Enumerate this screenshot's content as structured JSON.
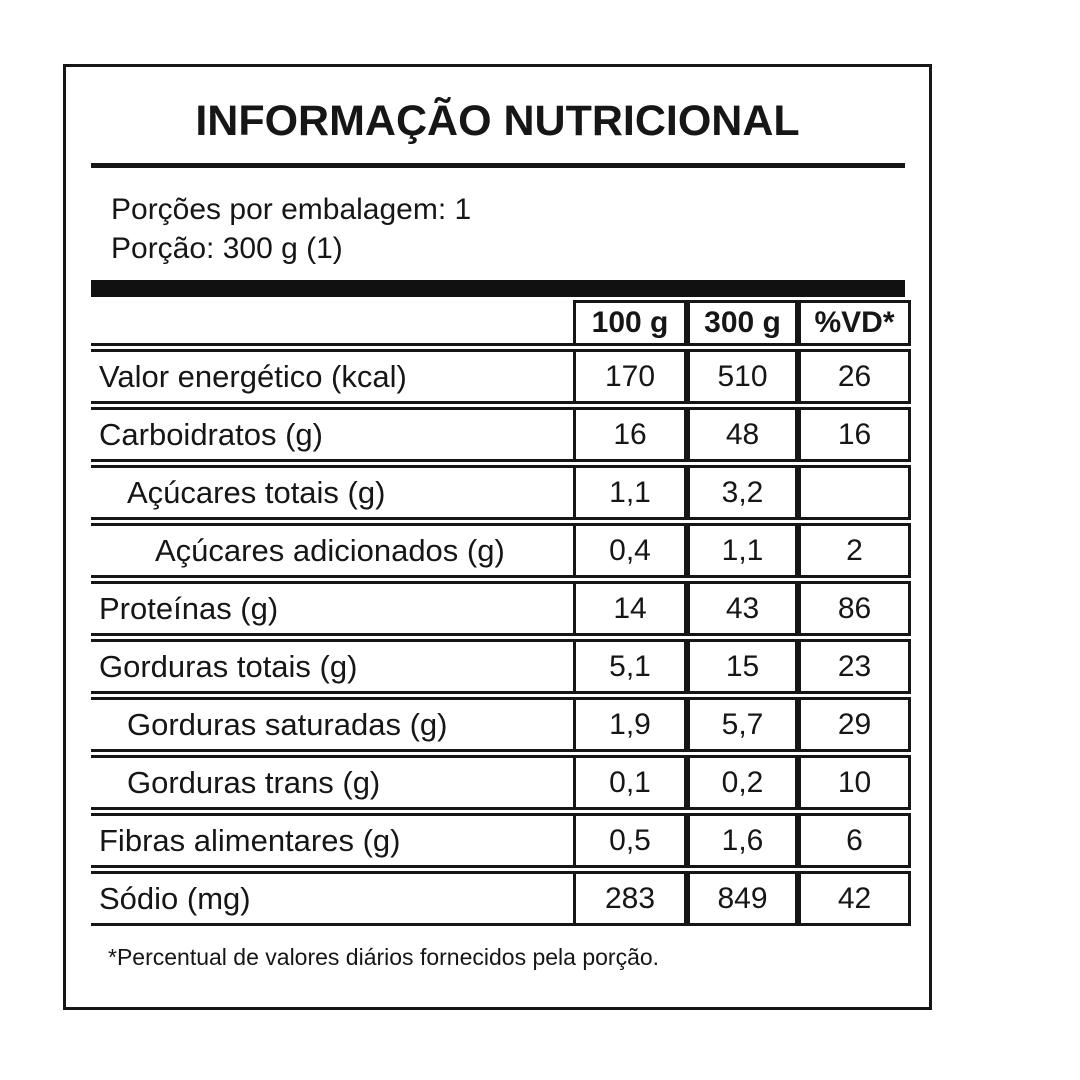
{
  "label": {
    "title": "INFORMAÇÃO NUTRICIONAL",
    "servings_per_package": "Porções por embalagem: 1",
    "serving_size": "Porção: 300 g (1)",
    "columns": [
      "100 g",
      "300 g",
      "%VD*"
    ],
    "rows": [
      {
        "name": "Valor energético (kcal)",
        "per_100g": "170",
        "per_300g": "510",
        "pct_vd": "26"
      },
      {
        "name": "Carboidratos (g)",
        "per_100g": "16",
        "per_300g": "48",
        "pct_vd": "16"
      },
      {
        "name": "Açúcares totais (g)",
        "per_100g": "1,1",
        "per_300g": "3,2",
        "pct_vd": ""
      },
      {
        "name": "Açúcares adicionados (g)",
        "per_100g": "0,4",
        "per_300g": "1,1",
        "pct_vd": "2"
      },
      {
        "name": "Proteínas (g)",
        "per_100g": "14",
        "per_300g": "43",
        "pct_vd": "86"
      },
      {
        "name": "Gorduras totais (g)",
        "per_100g": "5,1",
        "per_300g": "15",
        "pct_vd": "23"
      },
      {
        "name": "Gorduras saturadas (g)",
        "per_100g": "1,9",
        "per_300g": "5,7",
        "pct_vd": "29"
      },
      {
        "name": "Gorduras trans (g)",
        "per_100g": "0,1",
        "per_300g": "0,2",
        "pct_vd": "10"
      },
      {
        "name": "Fibras alimentares (g)",
        "per_100g": "0,5",
        "per_300g": "1,6",
        "pct_vd": "6"
      },
      {
        "name": "Sódio (mg)",
        "per_100g": "283",
        "per_300g": "849",
        "pct_vd": "42"
      }
    ],
    "footnote": "*Percentual de valores diários fornecidos pela porção.",
    "colors": {
      "ink": "#161616",
      "background": "#ffffff"
    }
  }
}
